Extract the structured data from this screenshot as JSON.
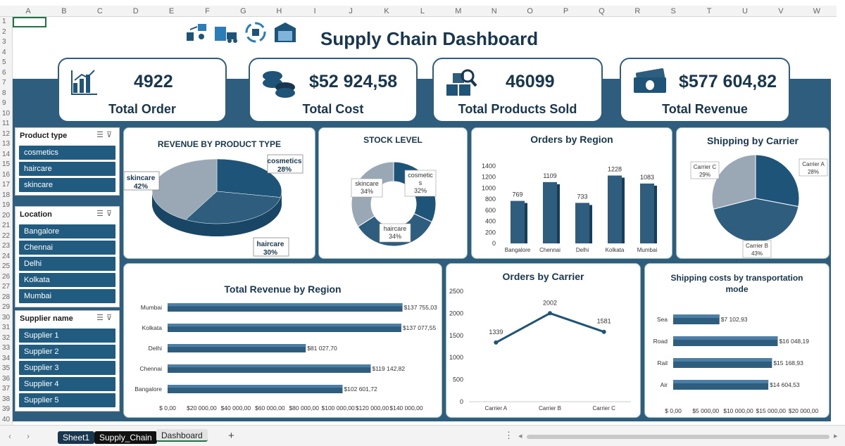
{
  "columns": [
    "A",
    "B",
    "C",
    "D",
    "E",
    "F",
    "G",
    "H",
    "I",
    "J",
    "K",
    "L",
    "M",
    "N",
    "O",
    "P",
    "Q",
    "R",
    "S",
    "T",
    "U",
    "V",
    "W"
  ],
  "rows": [
    "1",
    "2",
    "3",
    "4",
    "5",
    "6",
    "7",
    "8",
    "9",
    "10",
    "11",
    "12",
    "13",
    "14",
    "15",
    "16",
    "17",
    "18",
    "19",
    "20",
    "21",
    "22",
    "23",
    "24",
    "25",
    "26",
    "27",
    "28",
    "29",
    "30",
    "31",
    "32",
    "33",
    "34",
    "35",
    "36",
    "37",
    "38",
    "39",
    "40"
  ],
  "title": "Supply Chain Dashboard",
  "kpis": [
    {
      "value": "4922",
      "label": "Total Order",
      "icon": "bar-chart-icon"
    },
    {
      "value": "$52 924,58",
      "label": "Total Cost",
      "icon": "coins-icon"
    },
    {
      "value": "46099",
      "label": "Total Products Sold",
      "icon": "boxes-search-icon"
    },
    {
      "value": "$577 604,82",
      "label": "Total Revenue",
      "icon": "money-icon"
    }
  ],
  "slicers": [
    {
      "title": "Product type",
      "items": [
        "cosmetics",
        "haircare",
        "skincare"
      ]
    },
    {
      "title": "Location",
      "items": [
        "Bangalore",
        "Chennai",
        "Delhi",
        "Kolkata",
        "Mumbai"
      ]
    },
    {
      "title": "Supplier name",
      "items": [
        "Supplier 1",
        "Supplier 2",
        "Supplier 3",
        "Supplier 4",
        "Supplier 5"
      ]
    }
  ],
  "chart_data": [
    {
      "type": "pie",
      "title": "REVENUE BY PRODUCT TYPE",
      "labels": [
        "cosmetics",
        "haircare",
        "skincare"
      ],
      "values": [
        28,
        30,
        42
      ],
      "value_labels": [
        "28%",
        "30%",
        "42%"
      ]
    },
    {
      "type": "pie",
      "title": "STOCK LEVEL",
      "labels": [
        "cosmetics",
        "haircare",
        "skincare"
      ],
      "label_lines": [
        [
          "cosmetic",
          "s"
        ],
        [
          "haircare"
        ],
        [
          "skincare"
        ]
      ],
      "values": [
        32,
        34,
        34
      ],
      "value_labels": [
        "32%",
        "34%",
        "34%"
      ]
    },
    {
      "type": "bar",
      "title": "Orders by Region",
      "categories": [
        "Bangalore",
        "Chennai",
        "Delhi",
        "Kolkata",
        "Mumbai"
      ],
      "values": [
        769,
        1109,
        733,
        1228,
        1083
      ],
      "ylim": [
        0,
        1400
      ],
      "yticks": [
        0,
        200,
        400,
        600,
        800,
        1000,
        1200,
        1400
      ]
    },
    {
      "type": "pie",
      "title": "Shipping by Carrier",
      "labels": [
        "Carrier A",
        "Carrier B",
        "Carrier C"
      ],
      "values": [
        28,
        43,
        29
      ],
      "value_labels": [
        "28%",
        "43%",
        "29%"
      ]
    },
    {
      "type": "bar",
      "title": "Total Revenue by Region",
      "categories": [
        "Bangalore",
        "Chennai",
        "Delhi",
        "Kolkata",
        "Mumbai"
      ],
      "values": [
        102601.72,
        119142.82,
        81027.7,
        137077.55,
        137755.03
      ],
      "value_labels": [
        "$102 601,72",
        "$119 142,82",
        "$81 027,70",
        "$137 077,55",
        "$137 755,03"
      ],
      "xlim": [
        0,
        140000
      ],
      "xtick_labels": [
        "$ 0,00",
        "$20 000,00",
        "$40 000,00",
        "$60 000,00",
        "$80 000,00",
        "$100 000,00",
        "$120 000,00",
        "$140 000,00"
      ]
    },
    {
      "type": "line",
      "title": "Orders by Carrier",
      "categories": [
        "Carrier A",
        "Carrier B",
        "Carrier C"
      ],
      "values": [
        1339,
        2002,
        1581
      ],
      "ylim": [
        0,
        2500
      ],
      "yticks": [
        0,
        500,
        1000,
        1500,
        2000,
        2500
      ]
    },
    {
      "type": "bar",
      "title_lines": [
        "Shipping costs by transportation",
        "mode"
      ],
      "categories": [
        "Air",
        "Rail",
        "Road",
        "Sea"
      ],
      "values": [
        14604.53,
        15168.93,
        16048.19,
        7102.93
      ],
      "value_labels": [
        "$14 604,53",
        "$15 168,93",
        "$16 048,19",
        "$7 102,93"
      ],
      "xlim": [
        0,
        20000
      ],
      "xtick_labels": [
        "$ 0,00",
        "$5 000,00",
        "$10 000,00",
        "$15 000,00",
        "$20 000,00"
      ]
    }
  ],
  "tabs": [
    "Sheet1",
    "Supply_Chain",
    "Dashboard"
  ],
  "add_sheet": "+",
  "colors": {
    "accent": "#2e5d7e",
    "dark": "#18374f",
    "slice_dark": "#1f5479",
    "slice_mid": "#2e5d7e",
    "slice_light": "#9aa7b4"
  }
}
